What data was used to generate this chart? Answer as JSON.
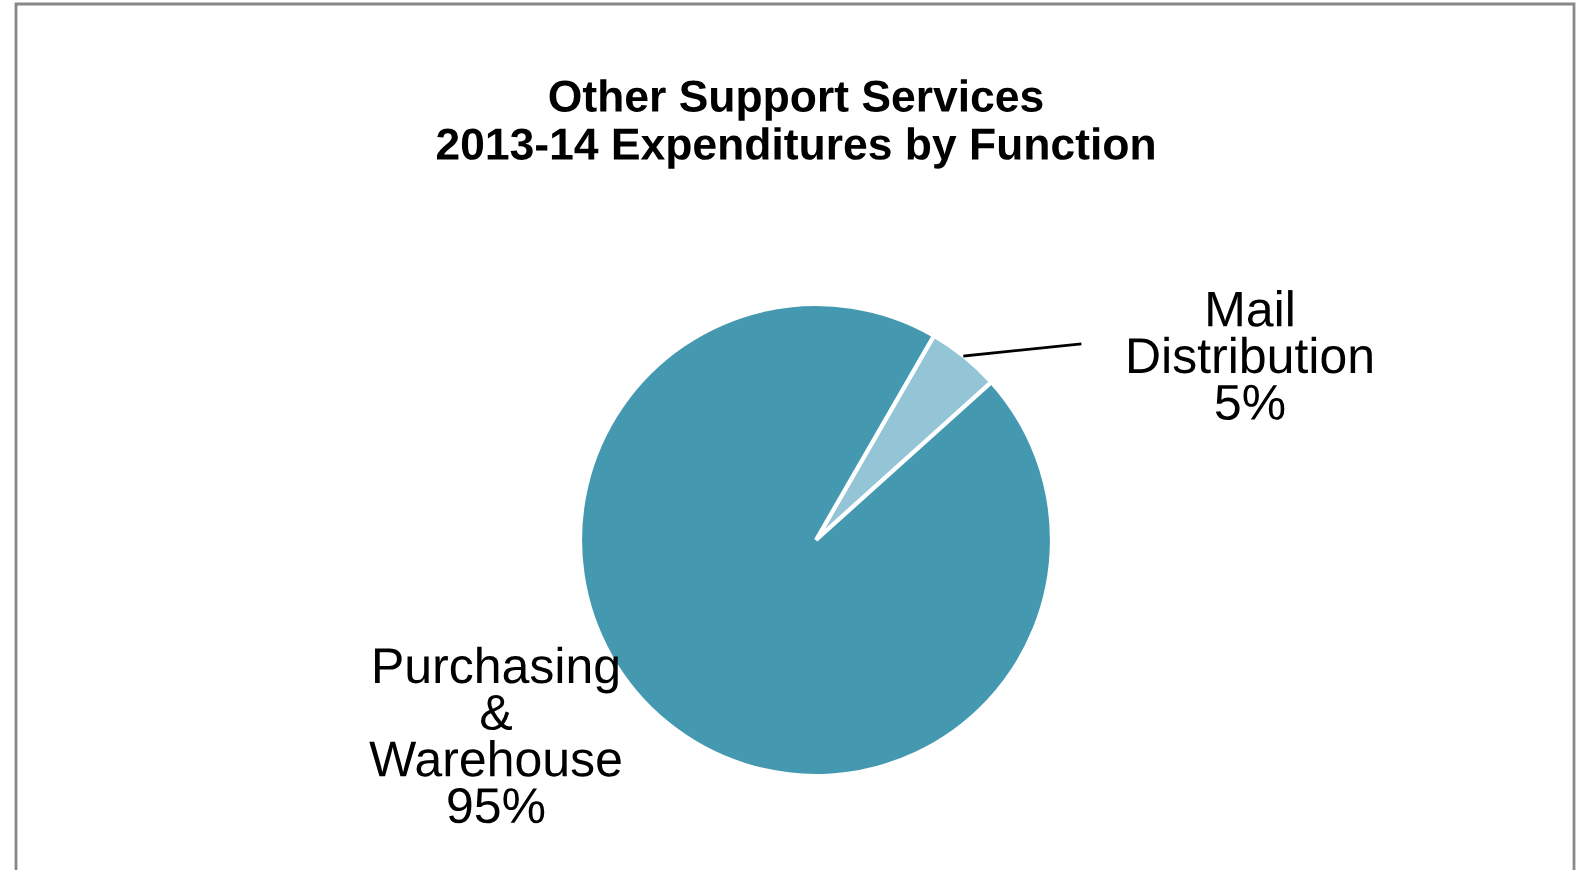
{
  "chart_data": {
    "type": "pie",
    "title": "Other Support Services\n2013-14 Expenditures by Function",
    "categories": [
      "Mail Distribution",
      "Purchasing & Warehouse"
    ],
    "values": [
      5,
      95
    ],
    "colors": [
      "#93c5d6",
      "#4499b1"
    ],
    "value_labels": [
      "5%",
      "95%"
    ],
    "legend": false
  }
}
